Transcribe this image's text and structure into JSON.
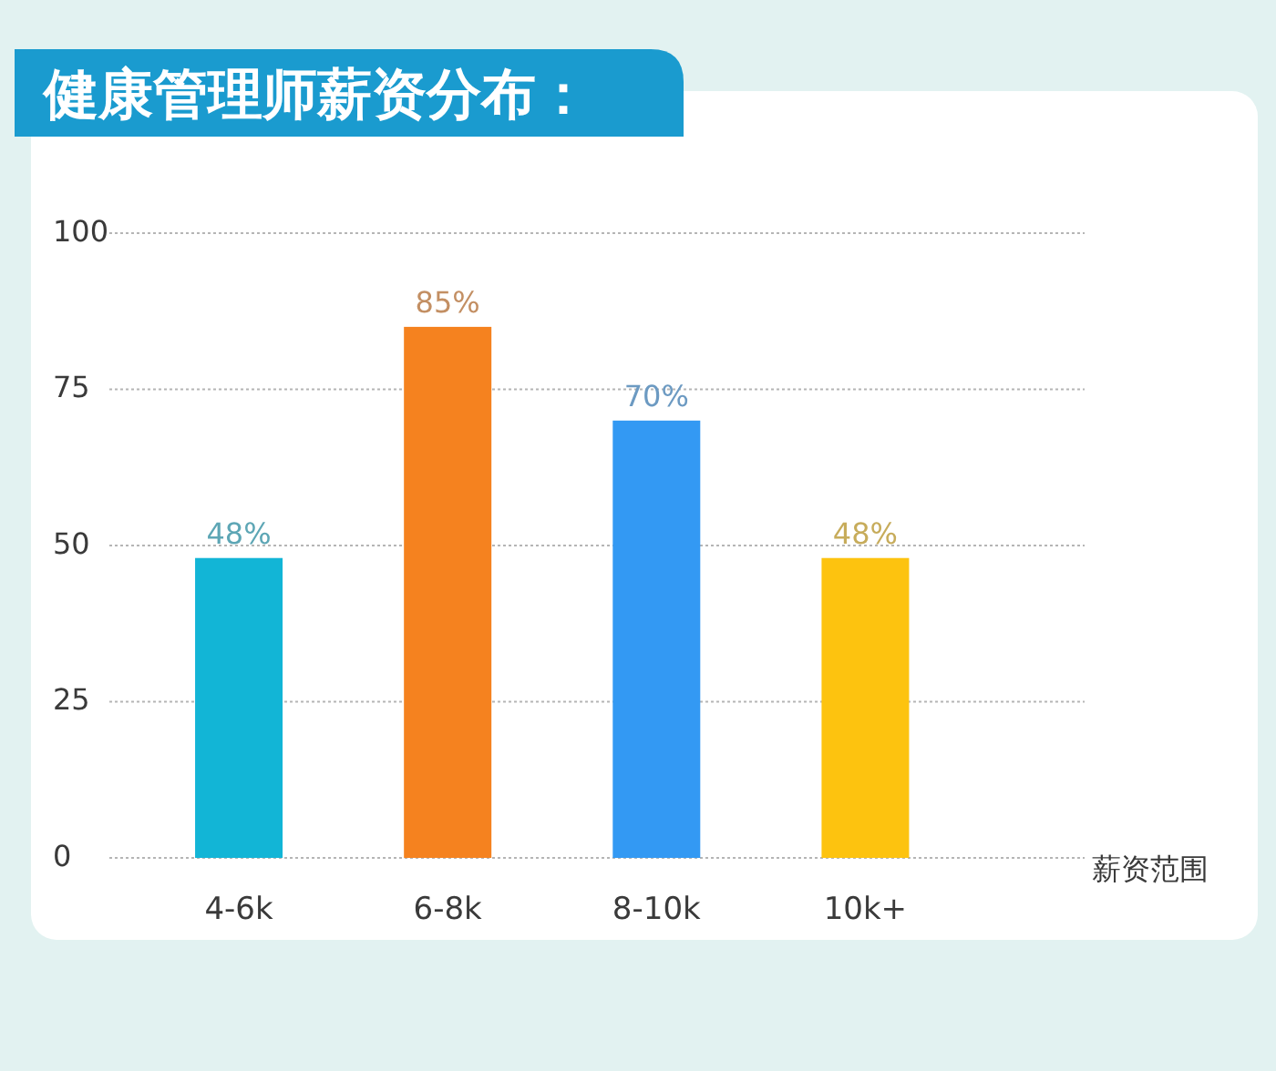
{
  "chart_data": {
    "type": "bar",
    "title": "健康管理师薪资分布：",
    "xlabel": "薪资范围",
    "categories": [
      "4-6k",
      "6-8k",
      "8-10k",
      "10k+"
    ],
    "values": [
      48,
      85,
      70,
      48
    ],
    "colors": [
      "#12b5d6",
      "#f5821f",
      "#3399f3",
      "#fdc30f"
    ],
    "value_labels": [
      "48%",
      "85%",
      "70%",
      "48%"
    ],
    "ylim": [
      0,
      100
    ],
    "yticks": [
      0,
      25,
      50,
      75,
      100
    ],
    "grid": "y"
  }
}
